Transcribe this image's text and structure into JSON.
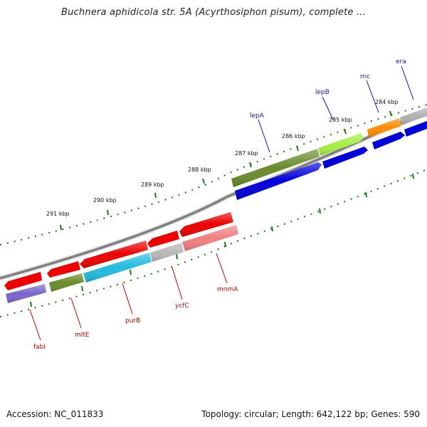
{
  "title": "Buchnera aphidicola str. 5A (Acyrthosiphon pisum), complete ...",
  "footer": {
    "accession": "Accession: NC_011833",
    "stats": "Topology: circular; Length: 642,122 bp; Genes: 590"
  },
  "colors": {
    "forward_label": "#1010cc",
    "reverse_label": "#cc0000",
    "backbone": "#808080",
    "tick": "#1a7a1a"
  },
  "ticks": [
    "291 kbp",
    "290 kbp",
    "289 kbp",
    "288 kbp",
    "287 kbp",
    "286 kbp",
    "285 kbp",
    "284 kbp"
  ],
  "forward_genes": [
    {
      "name": "lepA",
      "color": "#6a8c2a"
    },
    {
      "name": "lepB",
      "color": "#a6ee44"
    },
    {
      "name": "rnc",
      "color": "#ff8c00"
    },
    {
      "name": "era",
      "color": "#b0b0b0"
    }
  ],
  "reverse_genes": [
    {
      "name": "fabI",
      "color": "#7a66cc"
    },
    {
      "name": "mltE",
      "color": "#6a8c2a"
    },
    {
      "name": "purB",
      "color": "#22bbe0"
    },
    {
      "name": "ycfC",
      "color": "#b8b8b8"
    },
    {
      "name": "mnmA",
      "color": "#f07f7f"
    }
  ]
}
